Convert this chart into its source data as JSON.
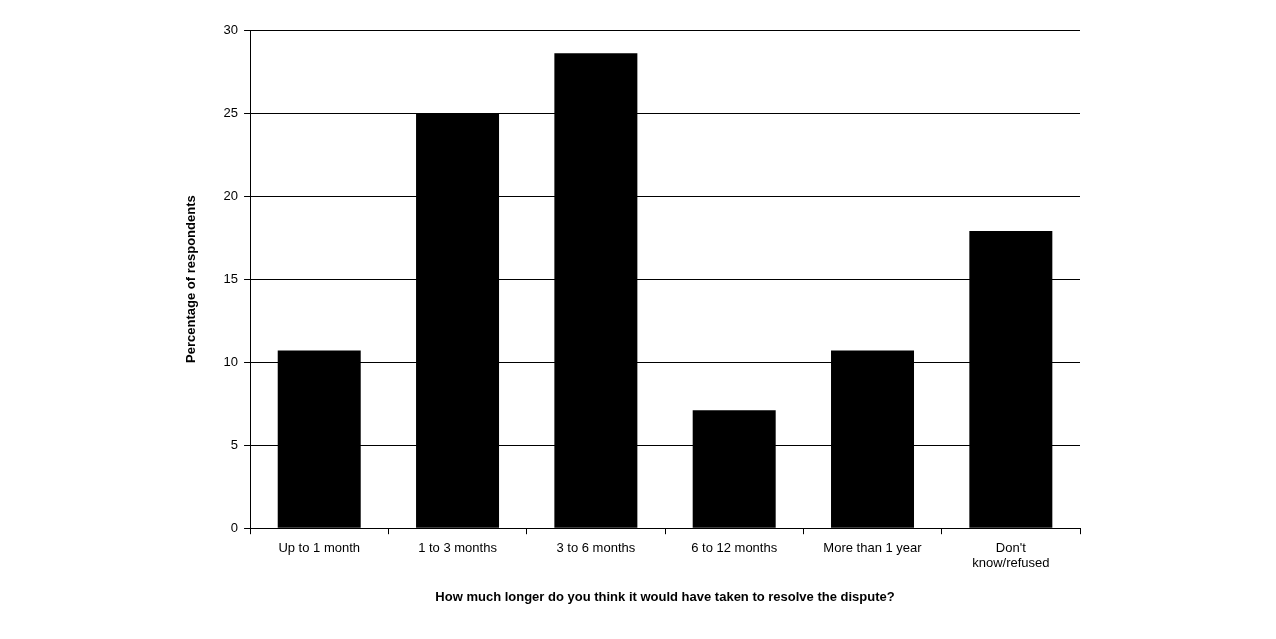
{
  "chart_data": {
    "type": "bar",
    "xlabel": "How much longer do you think it would have taken to resolve the dispute?",
    "ylabel": "Percentage of respondents",
    "categories": [
      "Up to 1 month",
      "1 to 3 months",
      "3 to 6 months",
      "6 to 12 months",
      "More than 1 year",
      "Don't know/refused"
    ],
    "values": [
      10.7,
      25,
      28.6,
      7.1,
      10.7,
      17.9
    ],
    "color": "#000000",
    "ylim": [
      0,
      30
    ],
    "yticks": [
      0,
      5,
      10,
      15,
      20,
      25,
      30
    ],
    "grid": "y",
    "legend": false
  }
}
